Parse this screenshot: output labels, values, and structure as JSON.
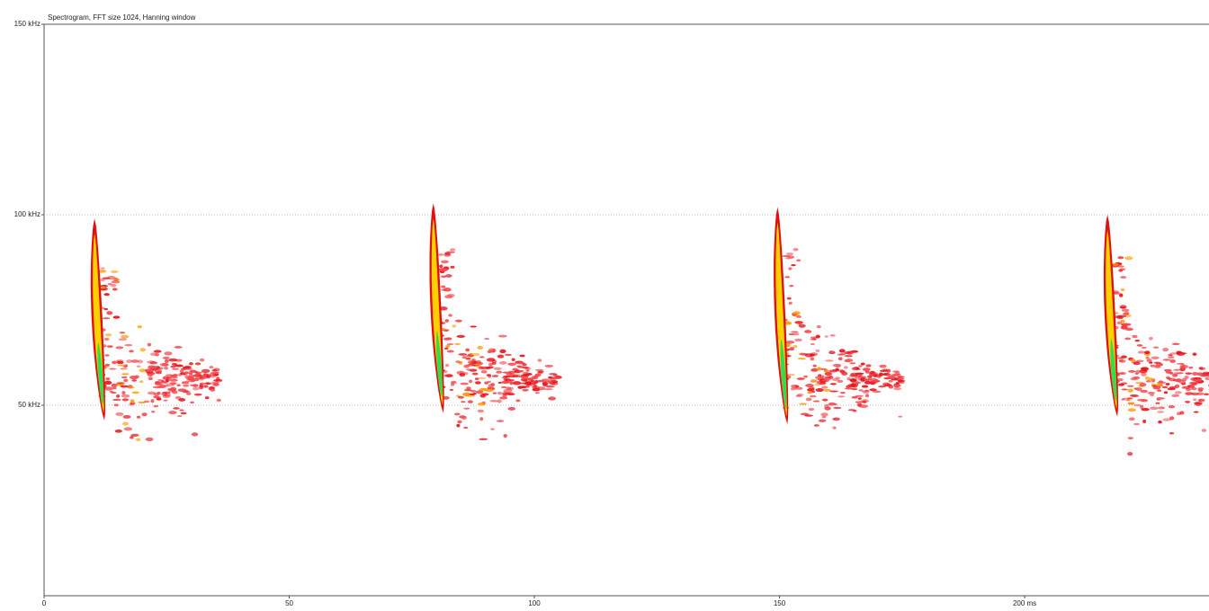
{
  "chart_data": {
    "type": "spectrogram",
    "title": "Spectrogram, FFT size 1024, Hanning window",
    "xlim": [
      0,
      237.6
    ],
    "xticks": [
      0,
      50,
      100,
      150,
      {
        "value": 200,
        "label": "200 ms"
      }
    ],
    "ylim": [
      0,
      150
    ],
    "yticks": [
      {
        "value": 150,
        "label": "150 kHz"
      },
      {
        "value": 100,
        "label": "100 kHz"
      },
      {
        "value": 50,
        "label": "50 kHz"
      }
    ],
    "grid": true,
    "calls": [
      {
        "time": 10.3,
        "fmax": 99,
        "fmin": 46
      },
      {
        "time": 79.4,
        "fmax": 103,
        "fmin": 48
      },
      {
        "time": 149.6,
        "fmax": 102,
        "fmin": 45
      },
      {
        "time": 216.9,
        "fmax": 100,
        "fmin": 47
      }
    ]
  }
}
